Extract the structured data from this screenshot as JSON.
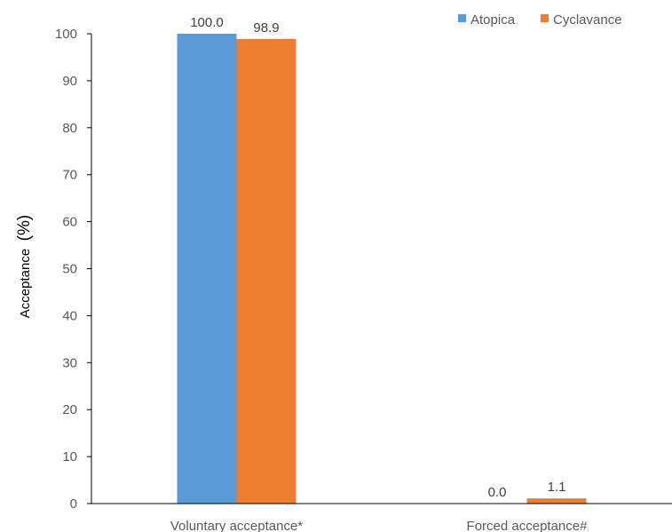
{
  "chart_data": {
    "type": "bar",
    "ylabel": "Acceptance",
    "ylabel_unit": "(%)",
    "ylim": [
      0,
      100
    ],
    "yticks": [
      0,
      10,
      20,
      30,
      40,
      50,
      60,
      70,
      80,
      90,
      100
    ],
    "categories": [
      "Voluntary acceptance*",
      "Forced acceptance#"
    ],
    "series": [
      {
        "name": "Atopica",
        "color": "#5B9BD5",
        "values": [
          100.0,
          0.0
        ],
        "labels": [
          "100.0",
          "0.0"
        ]
      },
      {
        "name": "Cyclavance",
        "color": "#ED7D31",
        "values": [
          98.9,
          1.1
        ],
        "labels": [
          "98.9",
          "1.1"
        ]
      }
    ],
    "legend_position": "top-right",
    "grid": false
  }
}
